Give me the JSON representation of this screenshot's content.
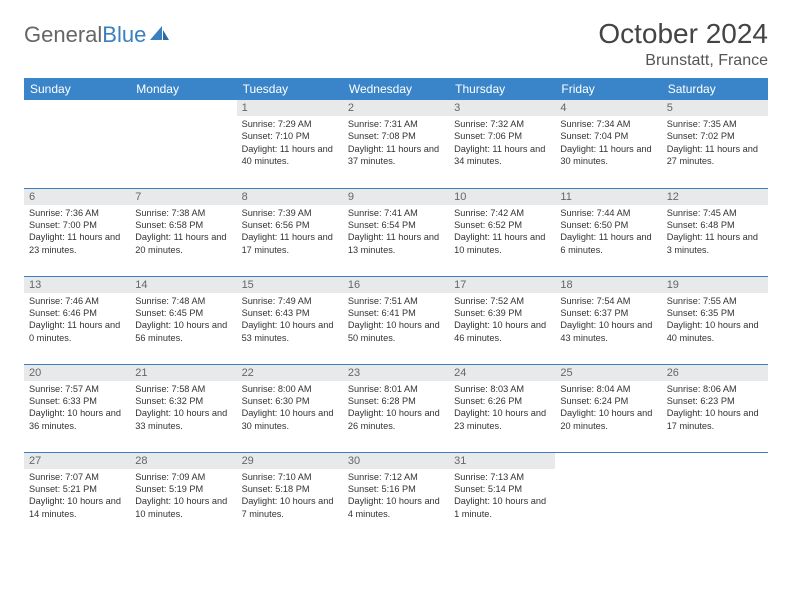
{
  "brand": {
    "part1": "General",
    "part2": "Blue"
  },
  "title": "October 2024",
  "location": "Brunstatt, France",
  "colors": {
    "header_bg": "#3a85c9",
    "header_text": "#ffffff",
    "daynum_bg": "#e8e9ea",
    "border": "#3a7fbf",
    "brand_blue": "#3a7fbf",
    "brand_gray": "#666666"
  },
  "dayNames": [
    "Sunday",
    "Monday",
    "Tuesday",
    "Wednesday",
    "Thursday",
    "Friday",
    "Saturday"
  ],
  "startOffset": 2,
  "days": [
    {
      "n": 1,
      "sunrise": "7:29 AM",
      "sunset": "7:10 PM",
      "daylight": "11 hours and 40 minutes."
    },
    {
      "n": 2,
      "sunrise": "7:31 AM",
      "sunset": "7:08 PM",
      "daylight": "11 hours and 37 minutes."
    },
    {
      "n": 3,
      "sunrise": "7:32 AM",
      "sunset": "7:06 PM",
      "daylight": "11 hours and 34 minutes."
    },
    {
      "n": 4,
      "sunrise": "7:34 AM",
      "sunset": "7:04 PM",
      "daylight": "11 hours and 30 minutes."
    },
    {
      "n": 5,
      "sunrise": "7:35 AM",
      "sunset": "7:02 PM",
      "daylight": "11 hours and 27 minutes."
    },
    {
      "n": 6,
      "sunrise": "7:36 AM",
      "sunset": "7:00 PM",
      "daylight": "11 hours and 23 minutes."
    },
    {
      "n": 7,
      "sunrise": "7:38 AM",
      "sunset": "6:58 PM",
      "daylight": "11 hours and 20 minutes."
    },
    {
      "n": 8,
      "sunrise": "7:39 AM",
      "sunset": "6:56 PM",
      "daylight": "11 hours and 17 minutes."
    },
    {
      "n": 9,
      "sunrise": "7:41 AM",
      "sunset": "6:54 PM",
      "daylight": "11 hours and 13 minutes."
    },
    {
      "n": 10,
      "sunrise": "7:42 AM",
      "sunset": "6:52 PM",
      "daylight": "11 hours and 10 minutes."
    },
    {
      "n": 11,
      "sunrise": "7:44 AM",
      "sunset": "6:50 PM",
      "daylight": "11 hours and 6 minutes."
    },
    {
      "n": 12,
      "sunrise": "7:45 AM",
      "sunset": "6:48 PM",
      "daylight": "11 hours and 3 minutes."
    },
    {
      "n": 13,
      "sunrise": "7:46 AM",
      "sunset": "6:46 PM",
      "daylight": "11 hours and 0 minutes."
    },
    {
      "n": 14,
      "sunrise": "7:48 AM",
      "sunset": "6:45 PM",
      "daylight": "10 hours and 56 minutes."
    },
    {
      "n": 15,
      "sunrise": "7:49 AM",
      "sunset": "6:43 PM",
      "daylight": "10 hours and 53 minutes."
    },
    {
      "n": 16,
      "sunrise": "7:51 AM",
      "sunset": "6:41 PM",
      "daylight": "10 hours and 50 minutes."
    },
    {
      "n": 17,
      "sunrise": "7:52 AM",
      "sunset": "6:39 PM",
      "daylight": "10 hours and 46 minutes."
    },
    {
      "n": 18,
      "sunrise": "7:54 AM",
      "sunset": "6:37 PM",
      "daylight": "10 hours and 43 minutes."
    },
    {
      "n": 19,
      "sunrise": "7:55 AM",
      "sunset": "6:35 PM",
      "daylight": "10 hours and 40 minutes."
    },
    {
      "n": 20,
      "sunrise": "7:57 AM",
      "sunset": "6:33 PM",
      "daylight": "10 hours and 36 minutes."
    },
    {
      "n": 21,
      "sunrise": "7:58 AM",
      "sunset": "6:32 PM",
      "daylight": "10 hours and 33 minutes."
    },
    {
      "n": 22,
      "sunrise": "8:00 AM",
      "sunset": "6:30 PM",
      "daylight": "10 hours and 30 minutes."
    },
    {
      "n": 23,
      "sunrise": "8:01 AM",
      "sunset": "6:28 PM",
      "daylight": "10 hours and 26 minutes."
    },
    {
      "n": 24,
      "sunrise": "8:03 AM",
      "sunset": "6:26 PM",
      "daylight": "10 hours and 23 minutes."
    },
    {
      "n": 25,
      "sunrise": "8:04 AM",
      "sunset": "6:24 PM",
      "daylight": "10 hours and 20 minutes."
    },
    {
      "n": 26,
      "sunrise": "8:06 AM",
      "sunset": "6:23 PM",
      "daylight": "10 hours and 17 minutes."
    },
    {
      "n": 27,
      "sunrise": "7:07 AM",
      "sunset": "5:21 PM",
      "daylight": "10 hours and 14 minutes."
    },
    {
      "n": 28,
      "sunrise": "7:09 AM",
      "sunset": "5:19 PM",
      "daylight": "10 hours and 10 minutes."
    },
    {
      "n": 29,
      "sunrise": "7:10 AM",
      "sunset": "5:18 PM",
      "daylight": "10 hours and 7 minutes."
    },
    {
      "n": 30,
      "sunrise": "7:12 AM",
      "sunset": "5:16 PM",
      "daylight": "10 hours and 4 minutes."
    },
    {
      "n": 31,
      "sunrise": "7:13 AM",
      "sunset": "5:14 PM",
      "daylight": "10 hours and 1 minute."
    }
  ],
  "labels": {
    "sunrise": "Sunrise:",
    "sunset": "Sunset:",
    "daylight": "Daylight:"
  }
}
